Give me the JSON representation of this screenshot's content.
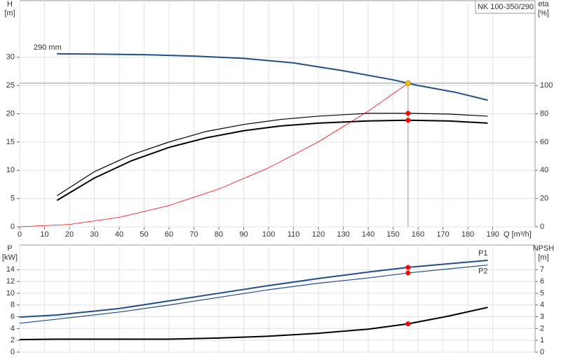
{
  "chart_data": [
    {
      "type": "line",
      "title": "NK 100-350/290",
      "ylabel": [
        "H",
        "[m]"
      ],
      "y2label": [
        "eta",
        "[%]"
      ],
      "xlabel": "Q [m³/h]",
      "xlim": [
        0,
        207
      ],
      "ylim": [
        0,
        40
      ],
      "y2lim": [
        0,
        160
      ],
      "xticks": [
        0,
        10,
        20,
        30,
        40,
        50,
        60,
        70,
        80,
        90,
        100,
        110,
        120,
        130,
        140,
        150,
        160,
        170,
        180,
        190
      ],
      "yticks": [
        0,
        5,
        10,
        15,
        20,
        25,
        30
      ],
      "y2ticks": [
        0,
        20,
        40,
        60,
        80,
        100
      ],
      "grid": true,
      "marked_x": 156,
      "series": [
        {
          "name": "290 mm",
          "color": "#1f4e8c",
          "width": 2,
          "label_at": "start",
          "marker_color": "#f7c21a",
          "ref_lines": true,
          "x": [
            15,
            30,
            50,
            70,
            90,
            110,
            130,
            150,
            156,
            160,
            175,
            188
          ],
          "values": [
            30.6,
            30.55,
            30.45,
            30.2,
            29.8,
            29.0,
            27.6,
            26.0,
            25.4,
            25.0,
            23.8,
            22.4
          ]
        },
        {
          "color": "#000000",
          "width": 1.2,
          "axis": "y2",
          "marker_color": "#ff0000",
          "x": [
            15,
            30,
            45,
            60,
            75,
            90,
            105,
            120,
            140,
            156,
            172,
            188
          ],
          "values": [
            22,
            39,
            51,
            60,
            67.5,
            72.4,
            76,
            78.3,
            80.3,
            80.3,
            79.8,
            78.3
          ]
        },
        {
          "color": "#000000",
          "width": 2,
          "axis": "y2",
          "marker_color": "#ff0000",
          "x": [
            15,
            30,
            45,
            60,
            75,
            90,
            105,
            120,
            140,
            156,
            172,
            188
          ],
          "values": [
            18.7,
            34.5,
            46.8,
            56.2,
            63,
            68,
            71.4,
            73.4,
            74.9,
            75.4,
            74.9,
            73.4
          ]
        },
        {
          "color": "#ff0000",
          "width": 0.8,
          "x": [
            0,
            20,
            40,
            60,
            80,
            100,
            120,
            140,
            156
          ],
          "values": [
            0,
            0.42,
            1.67,
            3.76,
            6.68,
            10.44,
            15.03,
            20.46,
            25.4
          ]
        }
      ]
    },
    {
      "type": "line",
      "ylabel": [
        "P",
        "[kW]"
      ],
      "y2label": [
        "NPSH",
        "[m]"
      ],
      "xlim": [
        0,
        207
      ],
      "ylim": [
        0,
        18.2
      ],
      "y2lim": [
        0,
        9.1
      ],
      "xgrid": [
        0,
        10,
        20,
        30,
        40,
        50,
        60,
        70,
        80,
        90,
        100,
        110,
        120,
        130,
        140,
        150,
        160,
        170,
        180,
        190
      ],
      "yticks": [
        0,
        2,
        4,
        6,
        8,
        10,
        12,
        14
      ],
      "y2ticks": [
        0,
        1,
        2,
        3,
        4,
        5,
        6,
        7
      ],
      "grid": true,
      "marked_x": 156,
      "series": [
        {
          "name": "P1",
          "color": "#1f4e8c",
          "width": 2,
          "label_at": "end-above",
          "marker_color": "#ff0000",
          "x": [
            0,
            15,
            40,
            60,
            80,
            100,
            120,
            140,
            156,
            188
          ],
          "values": [
            5.95,
            6.3,
            7.4,
            8.7,
            10,
            11.3,
            12.5,
            13.6,
            14.4,
            15.6
          ]
        },
        {
          "name": "P2",
          "color": "#1f4e8c",
          "width": 1.2,
          "label_at": "end-below",
          "marker_color": "#ff0000",
          "x": [
            0,
            15,
            40,
            60,
            80,
            100,
            120,
            140,
            156,
            188
          ],
          "values": [
            4.9,
            5.6,
            6.8,
            8,
            9.3,
            10.6,
            11.7,
            12.6,
            13.45,
            14.8
          ]
        },
        {
          "color": "#000000",
          "width": 2,
          "axis": "y2",
          "marker_color": "#ff0000",
          "x": [
            0,
            15,
            60,
            80,
            100,
            120,
            140,
            156,
            172,
            188
          ],
          "values": [
            1.06,
            1.1,
            1.1,
            1.2,
            1.35,
            1.6,
            1.95,
            2.4,
            3.05,
            3.8
          ]
        }
      ]
    }
  ]
}
